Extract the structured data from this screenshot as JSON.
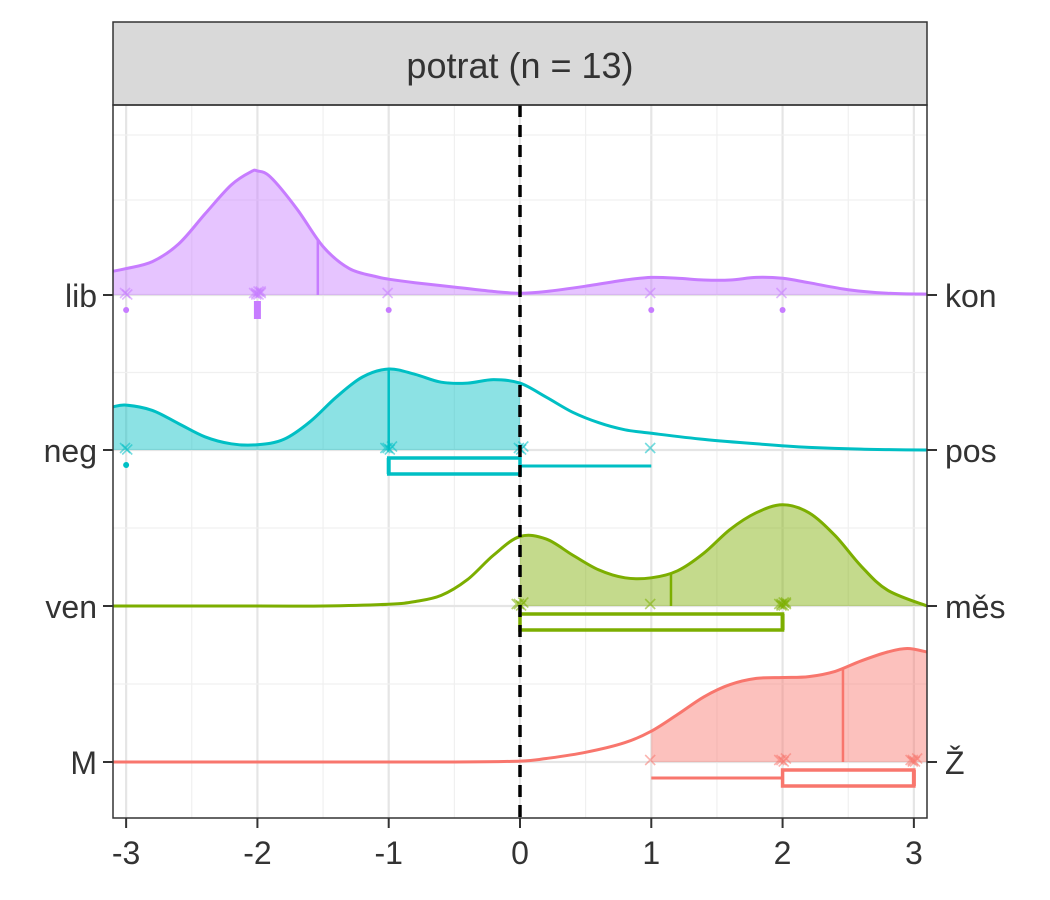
{
  "chart_data": {
    "type": "ridgeline",
    "panel_title": "potrat (n = 13)",
    "xlim": [
      -3.1,
      3.1
    ],
    "x_ticks": [
      -3,
      -2,
      -1,
      0,
      1,
      2,
      3
    ],
    "x_tick_labels": [
      "-3",
      "-2",
      "-1",
      "0",
      "1",
      "2",
      "3"
    ],
    "reference_line_x": 0,
    "grid": true,
    "rows": [
      {
        "left_label": "lib",
        "right_label": "kon",
        "color": "#C77CFF",
        "density_x": [
          -3.1,
          -3.0,
          -2.8,
          -2.6,
          -2.4,
          -2.2,
          -2.05,
          -2.0,
          -1.9,
          -1.7,
          -1.5,
          -1.3,
          -1.1,
          -1.0,
          -0.8,
          -0.5,
          -0.2,
          0.0,
          0.2,
          0.5,
          0.8,
          1.0,
          1.2,
          1.4,
          1.6,
          1.8,
          2.0,
          2.2,
          2.5,
          2.8,
          3.1
        ],
        "density_y": [
          0.27,
          0.3,
          0.38,
          0.58,
          0.92,
          1.25,
          1.4,
          1.41,
          1.34,
          0.98,
          0.55,
          0.3,
          0.21,
          0.18,
          0.14,
          0.09,
          0.04,
          0.02,
          0.04,
          0.1,
          0.17,
          0.2,
          0.19,
          0.17,
          0.17,
          0.2,
          0.19,
          0.14,
          0.06,
          0.02,
          0.01
        ],
        "mean": -1.54,
        "points": [
          -3,
          -3,
          -2,
          -2,
          -2,
          -2,
          -2,
          -2,
          -2,
          -1,
          1,
          2
        ],
        "outliers": [
          -3,
          -2,
          -1,
          1,
          2
        ],
        "box": null
      },
      {
        "left_label": "neg",
        "right_label": "pos",
        "color": "#00BFC4",
        "density_x": [
          -3.1,
          -3.0,
          -2.8,
          -2.6,
          -2.4,
          -2.2,
          -2.0,
          -1.8,
          -1.6,
          -1.4,
          -1.2,
          -1.0,
          -0.8,
          -0.6,
          -0.4,
          -0.2,
          0.0,
          0.2,
          0.4,
          0.6,
          0.8,
          1.0,
          1.4,
          1.8,
          2.2,
          2.6,
          3.1
        ],
        "density_y": [
          0.49,
          0.51,
          0.45,
          0.3,
          0.15,
          0.07,
          0.06,
          0.12,
          0.32,
          0.6,
          0.83,
          0.92,
          0.86,
          0.77,
          0.76,
          0.8,
          0.76,
          0.6,
          0.43,
          0.31,
          0.23,
          0.19,
          0.12,
          0.07,
          0.03,
          0.01,
          0.0
        ],
        "mean": -1.0,
        "points": [
          -3,
          -3,
          -1,
          -1,
          -1,
          -1,
          0,
          0,
          0,
          1
        ],
        "outliers": [
          -3
        ],
        "box": {
          "whisker_low": -1,
          "q1": -1,
          "median": -1,
          "q3": 0,
          "whisker_high": 1
        }
      },
      {
        "left_label": "ven",
        "right_label": "měs",
        "color": "#7CAE00",
        "density_x": [
          -3.1,
          -2.0,
          -1.5,
          -1.0,
          -0.8,
          -0.6,
          -0.4,
          -0.2,
          0.0,
          0.2,
          0.4,
          0.6,
          0.8,
          1.0,
          1.2,
          1.4,
          1.6,
          1.8,
          2.0,
          2.2,
          2.4,
          2.6,
          2.8,
          3.1
        ],
        "density_y": [
          0.0,
          0.0,
          0.0,
          0.02,
          0.05,
          0.12,
          0.3,
          0.58,
          0.79,
          0.76,
          0.58,
          0.41,
          0.32,
          0.32,
          0.4,
          0.6,
          0.87,
          1.06,
          1.15,
          1.06,
          0.8,
          0.45,
          0.18,
          0.0
        ],
        "mean": 1.15,
        "points": [
          0,
          0,
          0,
          0,
          1,
          2,
          2,
          2,
          2,
          2,
          2,
          2
        ],
        "outliers": [],
        "box": {
          "whisker_low": 0,
          "q1": 0,
          "median": 2,
          "q3": 2,
          "whisker_high": 2
        }
      },
      {
        "left_label": "M",
        "right_label": "Ž",
        "color": "#F8766D",
        "density_x": [
          -3.1,
          -2.0,
          -1.0,
          -0.5,
          0.0,
          0.2,
          0.5,
          0.8,
          1.0,
          1.2,
          1.4,
          1.6,
          1.8,
          2.0,
          2.2,
          2.4,
          2.6,
          2.8,
          2.95,
          3.1
        ],
        "density_y": [
          0.0,
          0.0,
          0.0,
          0.0,
          0.01,
          0.04,
          0.11,
          0.22,
          0.35,
          0.54,
          0.74,
          0.88,
          0.95,
          0.96,
          0.97,
          1.03,
          1.15,
          1.25,
          1.29,
          1.25
        ],
        "mean": 2.46,
        "points": [
          1,
          2,
          2,
          2,
          2,
          3,
          3,
          3,
          3,
          3
        ],
        "outliers": [],
        "box": {
          "whisker_low": 1,
          "q1": 2,
          "median": 3,
          "q3": 3,
          "whisker_high": 3
        }
      }
    ]
  }
}
